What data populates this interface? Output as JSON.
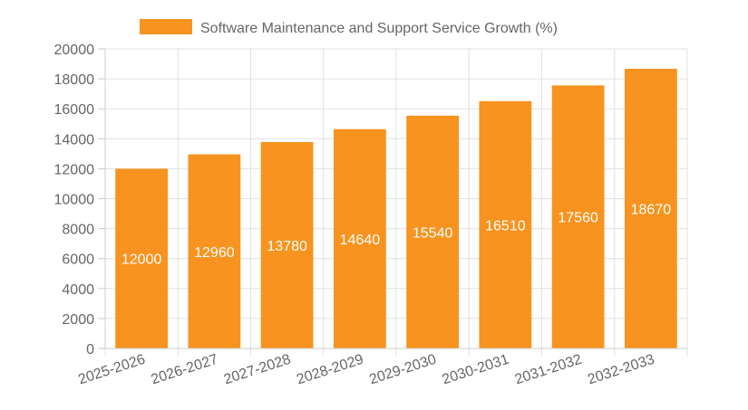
{
  "chart_data": {
    "type": "bar",
    "title": "",
    "xlabel": "",
    "ylabel": "",
    "categories": [
      "2025-2026",
      "2026-2027",
      "2027-2028",
      "2028-2029",
      "2029-2030",
      "2030-2031",
      "2031-2032",
      "2032-2033"
    ],
    "series": [
      {
        "name": "Software Maintenance and Support Service Growth (%)",
        "values": [
          12000,
          12960,
          13780,
          14640,
          15540,
          16510,
          17560,
          18670
        ],
        "color": "#f7931e"
      }
    ],
    "ylim": [
      0,
      20000
    ],
    "yticks": [
      0,
      2000,
      4000,
      6000,
      8000,
      10000,
      12000,
      14000,
      16000,
      18000,
      20000
    ],
    "grid": true,
    "legend_position": "top-center",
    "data_labels": true
  }
}
